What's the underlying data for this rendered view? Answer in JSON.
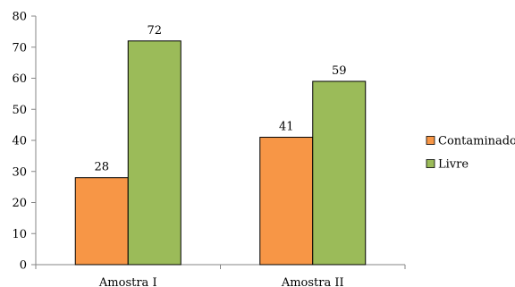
{
  "chart_data": {
    "type": "bar",
    "categories": [
      "Amostra I",
      "Amostra II"
    ],
    "series": [
      {
        "name": "Contaminado",
        "values": [
          28,
          41
        ],
        "color": "#f79646"
      },
      {
        "name": "Livre",
        "values": [
          72,
          59
        ],
        "color": "#9bbb59"
      }
    ],
    "ylim": [
      0,
      80
    ],
    "yticks": [
      0,
      10,
      20,
      30,
      40,
      50,
      60,
      70,
      80
    ],
    "grid": false,
    "legend_position": "right",
    "data_labels": true
  }
}
